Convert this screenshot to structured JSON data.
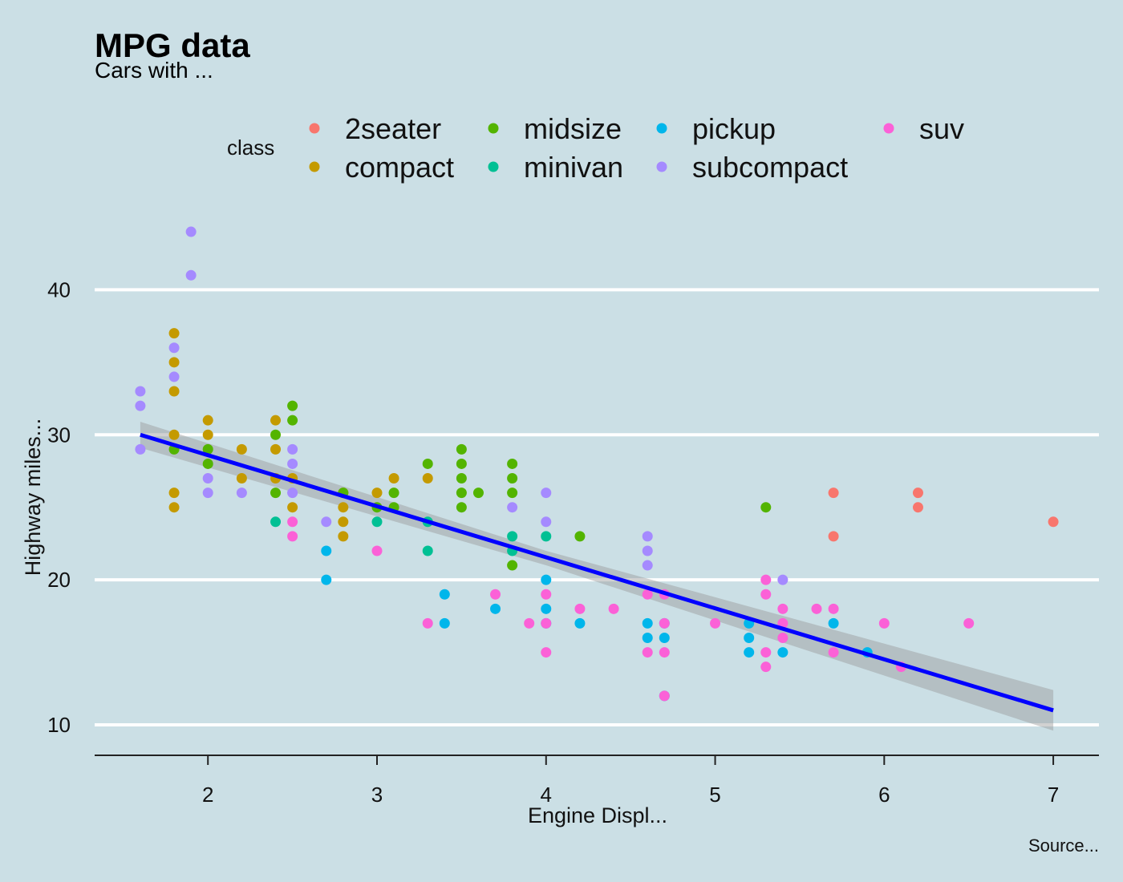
{
  "chart_data": {
    "type": "scatter",
    "title": "MPG data",
    "subtitle": "Cars with ...",
    "caption": "Source...",
    "xlabel": "Engine Displ...",
    "ylabel": "Highway miles...",
    "xlim": [
      1.33,
      7.27
    ],
    "ylim": [
      7.9,
      44.5
    ],
    "xticks": [
      2,
      3,
      4,
      5,
      6,
      7
    ],
    "yticks": [
      10,
      20,
      30,
      40
    ],
    "grid": "horizontal major only",
    "legend": {
      "title": "class",
      "position": "top",
      "entries": [
        {
          "name": "2seater",
          "color": "#F8766D"
        },
        {
          "name": "compact",
          "color": "#C49A00"
        },
        {
          "name": "midsize",
          "color": "#53B400"
        },
        {
          "name": "minivan",
          "color": "#00C094"
        },
        {
          "name": "pickup",
          "color": "#00B6EB"
        },
        {
          "name": "subcompact",
          "color": "#A58AFF"
        },
        {
          "name": "suv",
          "color": "#FB61D7"
        }
      ]
    },
    "series": [
      {
        "name": "2seater",
        "color": "#F8766D",
        "points": [
          [
            5.7,
            26
          ],
          [
            5.7,
            23
          ],
          [
            6.2,
            26
          ],
          [
            6.2,
            25
          ],
          [
            7.0,
            24
          ]
        ]
      },
      {
        "name": "compact",
        "color": "#C49A00",
        "points": [
          [
            1.8,
            37
          ],
          [
            1.8,
            35
          ],
          [
            1.8,
            33
          ],
          [
            1.8,
            30
          ],
          [
            1.8,
            26
          ],
          [
            1.8,
            25
          ],
          [
            2.0,
            31
          ],
          [
            2.0,
            30
          ],
          [
            2.2,
            29
          ],
          [
            2.2,
            27
          ],
          [
            2.4,
            31
          ],
          [
            2.4,
            29
          ],
          [
            2.4,
            27
          ],
          [
            2.5,
            27
          ],
          [
            2.5,
            25
          ],
          [
            2.8,
            26
          ],
          [
            2.8,
            25
          ],
          [
            2.8,
            24
          ],
          [
            2.8,
            23
          ],
          [
            3.0,
            26
          ],
          [
            3.1,
            27
          ],
          [
            3.3,
            27
          ]
        ]
      },
      {
        "name": "midsize",
        "color": "#53B400",
        "points": [
          [
            1.8,
            29
          ],
          [
            2.0,
            29
          ],
          [
            2.0,
            28
          ],
          [
            2.4,
            30
          ],
          [
            2.4,
            26
          ],
          [
            2.5,
            32
          ],
          [
            2.5,
            31
          ],
          [
            2.8,
            26
          ],
          [
            3.0,
            25
          ],
          [
            3.1,
            26
          ],
          [
            3.1,
            25
          ],
          [
            3.3,
            28
          ],
          [
            3.5,
            29
          ],
          [
            3.5,
            28
          ],
          [
            3.5,
            27
          ],
          [
            3.5,
            26
          ],
          [
            3.5,
            25
          ],
          [
            3.6,
            26
          ],
          [
            3.8,
            28
          ],
          [
            3.8,
            27
          ],
          [
            3.8,
            26
          ],
          [
            3.8,
            21
          ],
          [
            4.2,
            23
          ],
          [
            5.3,
            25
          ]
        ]
      },
      {
        "name": "minivan",
        "color": "#00C094",
        "points": [
          [
            2.4,
            24
          ],
          [
            3.0,
            24
          ],
          [
            3.3,
            24
          ],
          [
            3.3,
            22
          ],
          [
            3.8,
            23
          ],
          [
            3.8,
            22
          ],
          [
            4.0,
            23
          ]
        ]
      },
      {
        "name": "pickup",
        "color": "#00B6EB",
        "points": [
          [
            2.7,
            22
          ],
          [
            2.7,
            20
          ],
          [
            3.4,
            19
          ],
          [
            3.4,
            17
          ],
          [
            3.7,
            18
          ],
          [
            4.0,
            20
          ],
          [
            4.0,
            18
          ],
          [
            4.0,
            17
          ],
          [
            4.2,
            17
          ],
          [
            4.6,
            17
          ],
          [
            4.6,
            16
          ],
          [
            4.7,
            17
          ],
          [
            4.7,
            16
          ],
          [
            4.7,
            12
          ],
          [
            5.2,
            17
          ],
          [
            5.2,
            16
          ],
          [
            5.2,
            15
          ],
          [
            5.4,
            15
          ],
          [
            5.7,
            17
          ],
          [
            5.9,
            15
          ]
        ]
      },
      {
        "name": "subcompact",
        "color": "#A58AFF",
        "points": [
          [
            1.6,
            33
          ],
          [
            1.6,
            32
          ],
          [
            1.6,
            29
          ],
          [
            1.8,
            36
          ],
          [
            1.8,
            34
          ],
          [
            1.9,
            44
          ],
          [
            1.9,
            41
          ],
          [
            2.0,
            27
          ],
          [
            2.0,
            26
          ],
          [
            2.2,
            26
          ],
          [
            2.5,
            29
          ],
          [
            2.5,
            28
          ],
          [
            2.5,
            26
          ],
          [
            2.7,
            24
          ],
          [
            3.8,
            25
          ],
          [
            4.0,
            26
          ],
          [
            4.0,
            24
          ],
          [
            4.6,
            23
          ],
          [
            4.6,
            22
          ],
          [
            4.6,
            21
          ],
          [
            5.4,
            20
          ]
        ]
      },
      {
        "name": "suv",
        "color": "#FB61D7",
        "points": [
          [
            2.5,
            24
          ],
          [
            2.5,
            23
          ],
          [
            3.0,
            22
          ],
          [
            3.3,
            17
          ],
          [
            3.7,
            19
          ],
          [
            3.9,
            17
          ],
          [
            4.0,
            19
          ],
          [
            4.0,
            17
          ],
          [
            4.0,
            15
          ],
          [
            4.2,
            18
          ],
          [
            4.4,
            18
          ],
          [
            4.6,
            19
          ],
          [
            4.6,
            15
          ],
          [
            4.7,
            19
          ],
          [
            4.7,
            17
          ],
          [
            4.7,
            15
          ],
          [
            4.7,
            12
          ],
          [
            5.0,
            17
          ],
          [
            5.3,
            20
          ],
          [
            5.3,
            19
          ],
          [
            5.3,
            15
          ],
          [
            5.3,
            14
          ],
          [
            5.4,
            18
          ],
          [
            5.4,
            17
          ],
          [
            5.4,
            16
          ],
          [
            5.6,
            18
          ],
          [
            5.7,
            18
          ],
          [
            5.7,
            15
          ],
          [
            6.0,
            17
          ],
          [
            6.1,
            14
          ],
          [
            6.5,
            17
          ]
        ]
      }
    ],
    "trend": {
      "type": "linear",
      "color": "#0000FF",
      "points": [
        [
          1.6,
          30.0
        ],
        [
          7.0,
          11.0
        ]
      ],
      "ci_band": {
        "color": "#999999",
        "lower": [
          [
            1.6,
            29.1
          ],
          [
            4.0,
            21.0
          ],
          [
            7.0,
            9.6
          ]
        ],
        "upper": [
          [
            1.6,
            30.9
          ],
          [
            4.0,
            22.0
          ],
          [
            7.0,
            12.4
          ]
        ]
      }
    }
  }
}
